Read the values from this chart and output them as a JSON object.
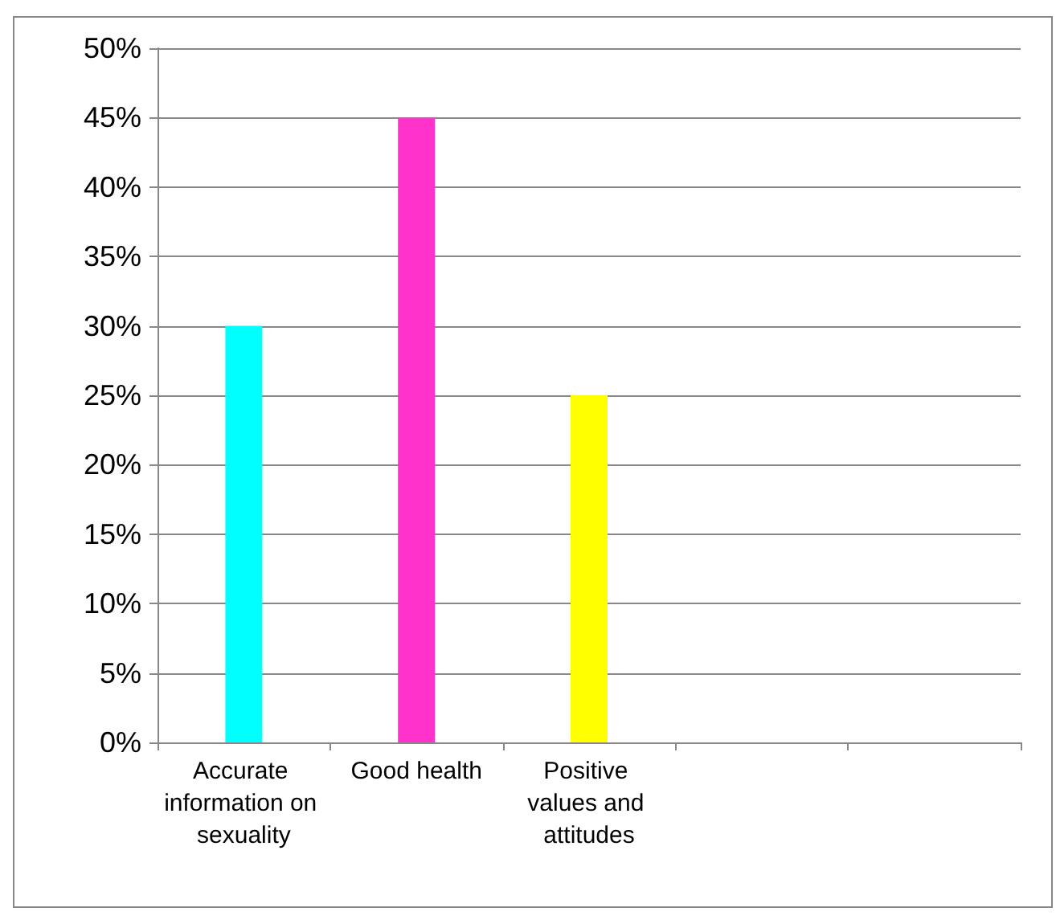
{
  "chart_data": {
    "type": "bar",
    "categories": [
      "Accurate information on sexuality",
      "Good health",
      "Positive values and attitudes",
      null,
      null
    ],
    "values": [
      30,
      45,
      25,
      null,
      null
    ],
    "colors": [
      "#00ffff",
      "#ff33cc",
      "#ffff00",
      null,
      null
    ],
    "ylim": [
      0,
      50
    ],
    "yticks": [
      {
        "value": 0,
        "label": "0%"
      },
      {
        "value": 5,
        "label": "5%"
      },
      {
        "value": 10,
        "label": "10%"
      },
      {
        "value": 15,
        "label": "15%"
      },
      {
        "value": 20,
        "label": "20%"
      },
      {
        "value": 25,
        "label": "25%"
      },
      {
        "value": 30,
        "label": "30%"
      },
      {
        "value": 35,
        "label": "35%"
      },
      {
        "value": 40,
        "label": "40%"
      },
      {
        "value": 45,
        "label": "45%"
      },
      {
        "value": 50,
        "label": "50%"
      }
    ],
    "grid": "y"
  }
}
